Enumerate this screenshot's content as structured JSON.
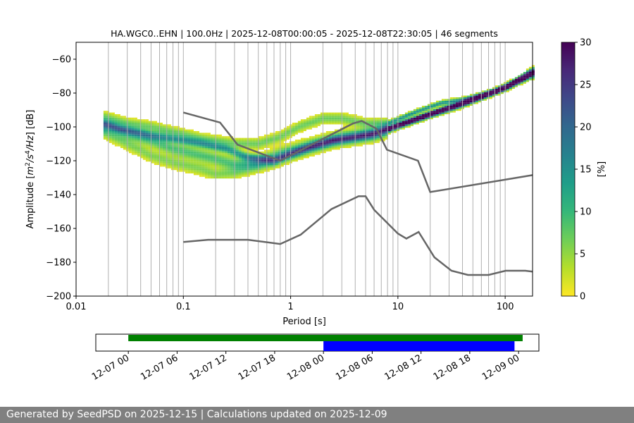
{
  "chart_data": {
    "type": "heatmap",
    "title": "HA.WGC0..EHN | 100.0Hz | 2025-12-08T00:00:05 - 2025-12-08T22:30:05 | 46 segments",
    "xlabel": "Period [s]",
    "ylabel_parts": [
      "Amplitude [",
      "m",
      "2",
      "/s",
      "4",
      "/Hz",
      "] [dB]"
    ],
    "x_scale": "log",
    "xlim": [
      0.01,
      180
    ],
    "ylim": [
      -200,
      -50
    ],
    "x_ticks": [
      {
        "value": 0.01,
        "label": "0.01"
      },
      {
        "value": 0.1,
        "label": "0.1"
      },
      {
        "value": 1,
        "label": "1"
      },
      {
        "value": 10,
        "label": "10"
      },
      {
        "value": 100,
        "label": "100"
      }
    ],
    "y_ticks": [
      {
        "value": -60,
        "label": "−60"
      },
      {
        "value": -80,
        "label": "−80"
      },
      {
        "value": -100,
        "label": "−100"
      },
      {
        "value": -120,
        "label": "−120"
      },
      {
        "value": -140,
        "label": "−140"
      },
      {
        "value": -160,
        "label": "−160"
      },
      {
        "value": -180,
        "label": "−180"
      },
      {
        "value": -200,
        "label": "−200"
      }
    ],
    "grid_periods": [
      0.02,
      0.03,
      0.04,
      0.05,
      0.06,
      0.07,
      0.08,
      0.09,
      0.1,
      0.2,
      0.3,
      0.4,
      0.5,
      0.6,
      0.7,
      0.8,
      0.9,
      1,
      2,
      3,
      4,
      5,
      6,
      7,
      8,
      9,
      10,
      20,
      30,
      40,
      50,
      60,
      70,
      80,
      90,
      100
    ],
    "colorbar": {
      "label": "[%]",
      "range": [
        0,
        30
      ],
      "ticks": [
        {
          "value": 0,
          "label": "0"
        },
        {
          "value": 5,
          "label": "5"
        },
        {
          "value": 10,
          "label": "10"
        },
        {
          "value": 15,
          "label": "15"
        },
        {
          "value": 20,
          "label": "20"
        },
        {
          "value": 25,
          "label": "25"
        },
        {
          "value": 30,
          "label": "30"
        }
      ],
      "colormap": [
        "#fde725",
        "#b5de2b",
        "#6ece58",
        "#35b779",
        "#1f9e89",
        "#26828e",
        "#31688e",
        "#3e4989",
        "#482878",
        "#440154"
      ]
    },
    "series": [
      {
        "name": "High noise model",
        "color": "#666666",
        "points": [
          [
            0.1,
            -91.5
          ],
          [
            0.22,
            -97.4
          ],
          [
            0.32,
            -110.5
          ],
          [
            0.8,
            -120
          ],
          [
            3.8,
            -98
          ],
          [
            4.6,
            -96.5
          ],
          [
            6.3,
            -101
          ],
          [
            7.9,
            -113.5
          ],
          [
            15.4,
            -120
          ],
          [
            20,
            -138.5
          ],
          [
            180,
            -128.5
          ]
        ]
      },
      {
        "name": "Low noise model",
        "color": "#666666",
        "points": [
          [
            0.1,
            -168
          ],
          [
            0.17,
            -166.7
          ],
          [
            0.4,
            -166.7
          ],
          [
            0.8,
            -169.2
          ],
          [
            1.24,
            -163.7
          ],
          [
            2.4,
            -148.6
          ],
          [
            4.3,
            -141
          ],
          [
            5.0,
            -141
          ],
          [
            6.0,
            -149
          ],
          [
            10,
            -163
          ],
          [
            12,
            -166
          ],
          [
            15.6,
            -162.1
          ],
          [
            21.9,
            -177.1
          ],
          [
            31.6,
            -185
          ],
          [
            45,
            -187.5
          ],
          [
            70,
            -187.5
          ],
          [
            101,
            -185
          ],
          [
            154,
            -185
          ],
          [
            180,
            -185.5
          ]
        ]
      }
    ],
    "psd_bands": [
      {
        "name": "modal",
        "spread": 1.6,
        "peak": 14,
        "points": [
          [
            0.018,
            -98
          ],
          [
            0.025,
            -101
          ],
          [
            0.035,
            -103
          ],
          [
            0.05,
            -105
          ],
          [
            0.08,
            -107
          ],
          [
            0.15,
            -110
          ],
          [
            0.25,
            -113
          ],
          [
            0.4,
            -118
          ],
          [
            0.7,
            -120
          ],
          [
            1.0,
            -116
          ],
          [
            1.5,
            -112
          ],
          [
            2.5,
            -108
          ],
          [
            4,
            -106
          ],
          [
            6,
            -104
          ],
          [
            9,
            -100
          ],
          [
            15,
            -95
          ],
          [
            25,
            -90
          ],
          [
            40,
            -86
          ],
          [
            60,
            -82
          ],
          [
            100,
            -77
          ],
          [
            150,
            -71
          ],
          [
            180,
            -68
          ]
        ]
      },
      {
        "name": "upper",
        "spread": 2.0,
        "peak": 7,
        "points": [
          [
            0.018,
            -94
          ],
          [
            0.03,
            -98
          ],
          [
            0.05,
            -100
          ],
          [
            0.08,
            -103
          ],
          [
            0.15,
            -107
          ],
          [
            0.3,
            -110
          ],
          [
            0.5,
            -110
          ],
          [
            0.8,
            -106
          ],
          [
            1.2,
            -100
          ],
          [
            2,
            -95
          ],
          [
            3,
            -95
          ],
          [
            5,
            -98
          ],
          [
            8,
            -98
          ],
          [
            15,
            -91
          ],
          [
            25,
            -86
          ],
          [
            40,
            -84
          ],
          [
            80,
            -79
          ],
          [
            130,
            -72
          ],
          [
            180,
            -66
          ]
        ]
      },
      {
        "name": "lower",
        "spread": 2.4,
        "peak": 6,
        "points": [
          [
            0.018,
            -103
          ],
          [
            0.03,
            -110
          ],
          [
            0.05,
            -117
          ],
          [
            0.08,
            -121
          ],
          [
            0.15,
            -125
          ],
          [
            0.2,
            -128
          ],
          [
            0.3,
            -127
          ],
          [
            0.5,
            -123
          ],
          [
            0.7,
            -121
          ],
          [
            1.0,
            -117
          ],
          [
            1.5,
            -113
          ],
          [
            2.5,
            -109
          ],
          [
            4,
            -107
          ],
          [
            7,
            -104
          ],
          [
            10,
            -100
          ],
          [
            20,
            -93
          ],
          [
            40,
            -87
          ],
          [
            100,
            -77
          ],
          [
            180,
            -70
          ]
        ]
      },
      {
        "name": "mid",
        "spread": 2.6,
        "peak": 9,
        "points": [
          [
            0.02,
            -100
          ],
          [
            0.03,
            -104
          ],
          [
            0.05,
            -108
          ],
          [
            0.08,
            -113
          ],
          [
            0.15,
            -117
          ],
          [
            0.3,
            -122
          ],
          [
            0.5,
            -121
          ],
          [
            0.8,
            -116
          ],
          [
            1.5,
            -111
          ],
          [
            3,
            -106
          ],
          [
            6,
            -104
          ],
          [
            10,
            -99
          ],
          [
            30,
            -89
          ],
          [
            100,
            -77
          ],
          [
            180,
            -68
          ]
        ]
      }
    ],
    "timeline": {
      "ticks": [
        "12-07 00",
        "12-07 06",
        "12-07 12",
        "12-07 18",
        "12-08 00",
        "12-08 06",
        "12-08 12",
        "12-08 18",
        "12-09 00"
      ],
      "bars": [
        {
          "name": "available data",
          "color": "#008000",
          "start_hour": 0,
          "end_hour": 48.5
        },
        {
          "name": "processed segments",
          "color": "#0000ff",
          "start_hour": 24,
          "end_hour": 47.5
        }
      ]
    }
  },
  "footer": "Generated by SeedPSD on 2025-12-15 | Calculations updated on 2025-12-09"
}
